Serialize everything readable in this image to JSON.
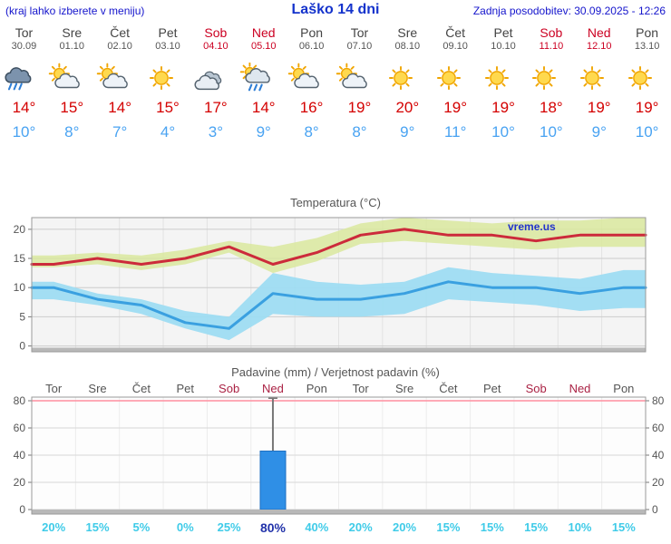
{
  "header": {
    "left_note": "(kraj lahko izberete v meniju)",
    "title": "Laško 14 dni",
    "updated": "Zadnja posodobitev: 30.09.2025 - 12:26"
  },
  "forecast": {
    "days": [
      {
        "name": "Tor",
        "date": "30.09",
        "icon": "rain",
        "tmax": "14°",
        "tmin": "10°",
        "weekend": false
      },
      {
        "name": "Sre",
        "date": "01.10",
        "icon": "partly-cloudy",
        "tmax": "15°",
        "tmin": "8°",
        "weekend": false
      },
      {
        "name": "Čet",
        "date": "02.10",
        "icon": "partly-cloudy",
        "tmax": "14°",
        "tmin": "7°",
        "weekend": false
      },
      {
        "name": "Pet",
        "date": "03.10",
        "icon": "sunny",
        "tmax": "15°",
        "tmin": "4°",
        "weekend": false
      },
      {
        "name": "Sob",
        "date": "04.10",
        "icon": "cloudy",
        "tmax": "17°",
        "tmin": "3°",
        "weekend": true
      },
      {
        "name": "Ned",
        "date": "05.10",
        "icon": "showers",
        "tmax": "14°",
        "tmin": "9°",
        "weekend": true
      },
      {
        "name": "Pon",
        "date": "06.10",
        "icon": "partly-cloudy",
        "tmax": "16°",
        "tmin": "8°",
        "weekend": false
      },
      {
        "name": "Tor",
        "date": "07.10",
        "icon": "partly-cloudy",
        "tmax": "19°",
        "tmin": "8°",
        "weekend": false
      },
      {
        "name": "Sre",
        "date": "08.10",
        "icon": "sunny",
        "tmax": "20°",
        "tmin": "9°",
        "weekend": false
      },
      {
        "name": "Čet",
        "date": "09.10",
        "icon": "sunny",
        "tmax": "19°",
        "tmin": "11°",
        "weekend": false
      },
      {
        "name": "Pet",
        "date": "10.10",
        "icon": "sunny",
        "tmax": "19°",
        "tmin": "10°",
        "weekend": false
      },
      {
        "name": "Sob",
        "date": "11.10",
        "icon": "sunny",
        "tmax": "18°",
        "tmin": "10°",
        "weekend": true
      },
      {
        "name": "Ned",
        "date": "12.10",
        "icon": "sunny",
        "tmax": "19°",
        "tmin": "9°",
        "weekend": true
      },
      {
        "name": "Pon",
        "date": "13.10",
        "icon": "sunny",
        "tmax": "19°",
        "tmin": "10°",
        "weekend": false
      }
    ]
  },
  "charts": {
    "temperature": {
      "title": "Temperatura (°C)",
      "watermark": "vreme.us"
    },
    "precipitation": {
      "title": "Padavine (mm) / Verjetnost padavin (%)",
      "day_labels": [
        {
          "name": "Tor",
          "weekend": false
        },
        {
          "name": "Sre",
          "weekend": false
        },
        {
          "name": "Čet",
          "weekend": false
        },
        {
          "name": "Pet",
          "weekend": false
        },
        {
          "name": "Sob",
          "weekend": true
        },
        {
          "name": "Ned",
          "weekend": true
        },
        {
          "name": "Pon",
          "weekend": false
        },
        {
          "name": "Tor",
          "weekend": false
        },
        {
          "name": "Sre",
          "weekend": false
        },
        {
          "name": "Čet",
          "weekend": false
        },
        {
          "name": "Pet",
          "weekend": false
        },
        {
          "name": "Sob",
          "weekend": true
        },
        {
          "name": "Ned",
          "weekend": true
        },
        {
          "name": "Pon",
          "weekend": false
        }
      ],
      "prob_labels": [
        {
          "text": "20%",
          "highlight": false
        },
        {
          "text": "15%",
          "highlight": false
        },
        {
          "text": "5%",
          "highlight": false
        },
        {
          "text": "0%",
          "highlight": false
        },
        {
          "text": "25%",
          "highlight": false
        },
        {
          "text": "80%",
          "highlight": true
        },
        {
          "text": "40%",
          "highlight": false
        },
        {
          "text": "20%",
          "highlight": false
        },
        {
          "text": "20%",
          "highlight": false
        },
        {
          "text": "15%",
          "highlight": false
        },
        {
          "text": "15%",
          "highlight": false
        },
        {
          "text": "15%",
          "highlight": false
        },
        {
          "text": "10%",
          "highlight": false
        },
        {
          "text": "15%",
          "highlight": false
        }
      ]
    }
  },
  "chart_data": [
    {
      "type": "line",
      "title": "Temperatura (°C)",
      "categories": [
        "Tor",
        "Sre",
        "Čet",
        "Pet",
        "Sob",
        "Ned",
        "Pon",
        "Tor",
        "Sre",
        "Čet",
        "Pet",
        "Sob",
        "Ned",
        "Pon"
      ],
      "series": [
        {
          "name": "tmax",
          "values": [
            14,
            15,
            14,
            15,
            17,
            14,
            16,
            19,
            20,
            19,
            19,
            18,
            19,
            19
          ]
        },
        {
          "name": "tmax_upper",
          "values": [
            15.5,
            16,
            15.5,
            16.5,
            18,
            17,
            18.5,
            21,
            22,
            21.5,
            21,
            21.5,
            21.5,
            22
          ]
        },
        {
          "name": "tmax_lower",
          "values": [
            13.5,
            14,
            13,
            14,
            16,
            12.5,
            14.5,
            17.5,
            18,
            17.5,
            17,
            16.5,
            17,
            17
          ]
        },
        {
          "name": "tmin",
          "values": [
            10,
            8,
            7,
            4,
            3,
            9,
            8,
            8,
            9,
            11,
            10,
            10,
            9,
            10
          ]
        },
        {
          "name": "tmin_upper",
          "values": [
            11,
            9,
            8,
            6,
            5,
            12.5,
            11,
            10.5,
            11,
            13.5,
            12.5,
            12,
            11.5,
            13
          ]
        },
        {
          "name": "tmin_lower",
          "values": [
            8,
            7,
            5.5,
            3,
            1,
            5.5,
            5,
            5,
            5.5,
            8,
            7.5,
            7,
            6,
            6.5
          ]
        }
      ],
      "ylim": [
        -1,
        22
      ],
      "yticks": [
        0,
        5,
        10,
        15,
        20
      ],
      "colors": {
        "tmax_line": "#cc2b3b",
        "tmax_band": "#d9e89b",
        "tmin_line": "#3aa0e0",
        "tmin_band": "#9edcf2"
      }
    },
    {
      "type": "bar",
      "title": "Padavine (mm) / Verjetnost padavin (%)",
      "categories": [
        "Tor",
        "Sre",
        "Čet",
        "Pet",
        "Sob",
        "Ned",
        "Pon",
        "Tor",
        "Sre",
        "Čet",
        "Pet",
        "Sob",
        "Ned",
        "Pon"
      ],
      "values": [
        0,
        0,
        0,
        0,
        0,
        43,
        0,
        0,
        0,
        0,
        0,
        0,
        0,
        0
      ],
      "whisker": {
        "index": 5,
        "max": 82
      },
      "probabilities": [
        20,
        15,
        5,
        0,
        25,
        80,
        40,
        20,
        20,
        15,
        15,
        15,
        10,
        15
      ],
      "ylim": [
        0,
        84
      ],
      "yticks": [
        0,
        20,
        40,
        60,
        80
      ],
      "colors": {
        "bar": "#2f8fe6",
        "top_gridline": "#ff8fa0"
      }
    }
  ]
}
